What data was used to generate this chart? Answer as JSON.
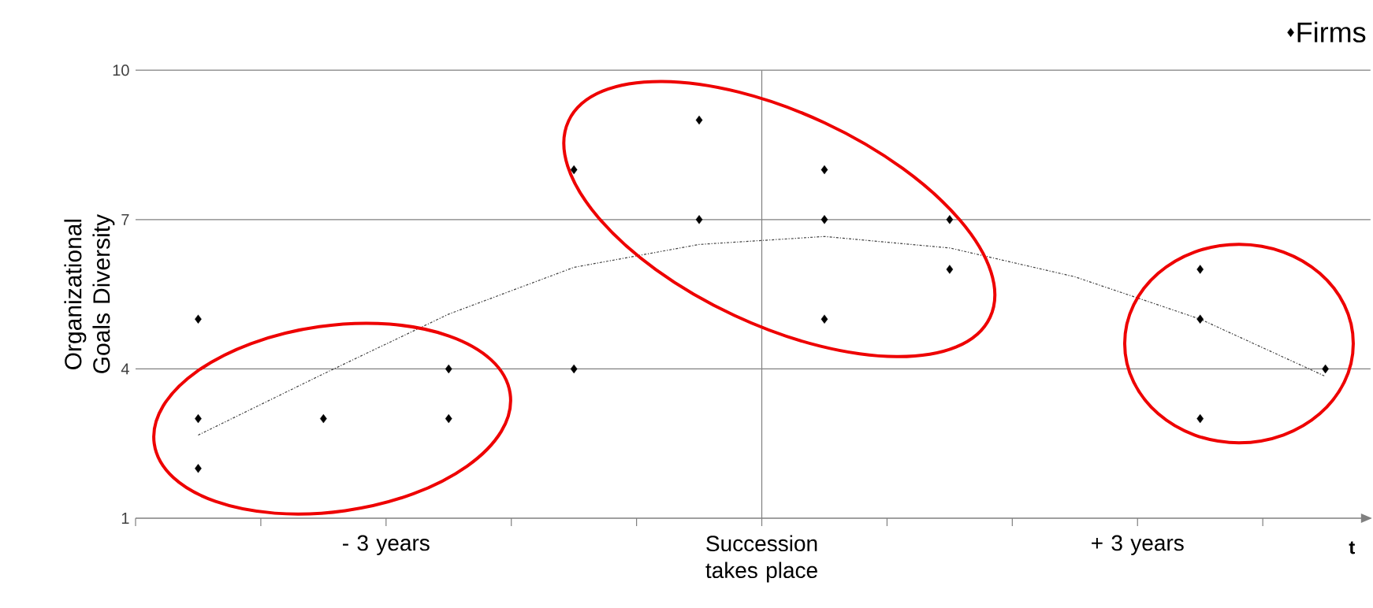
{
  "chart_data": {
    "type": "scatter",
    "ylabel": "Organizational Goals Diversity",
    "xlabel": "t",
    "categories": [
      null,
      null,
      null,
      null,
      null,
      null,
      null,
      null,
      null,
      null
    ],
    "series": [
      {
        "name": "Firms",
        "color": "#000000",
        "marker": "diamond",
        "values": [
          5,
          3,
          4,
          8,
          9,
          8,
          7,
          null,
          6,
          4
        ]
      },
      {
        "color": "#000000",
        "marker": "diamond",
        "values": [
          3,
          null,
          3,
          4,
          7,
          7,
          6,
          null,
          5,
          null
        ]
      },
      {
        "color": "#000000",
        "marker": "diamond",
        "values": [
          2,
          null,
          null,
          null,
          null,
          5,
          null,
          null,
          3,
          null
        ]
      },
      {
        "type": "line",
        "color": "#404040",
        "line_style": "dashed",
        "marker": "none",
        "values": [
          2.67,
          3.9,
          5.1,
          6.04,
          6.5,
          6.66,
          6.43,
          5.85,
          5.0,
          3.85
        ]
      }
    ],
    "ylim": [
      1,
      10
    ],
    "yticks": [
      1,
      4,
      7,
      10
    ],
    "grid": "y",
    "legend": "top right",
    "annotations": [
      "- 3 years",
      "Succession takes place",
      "+ 3 years"
    ]
  }
}
